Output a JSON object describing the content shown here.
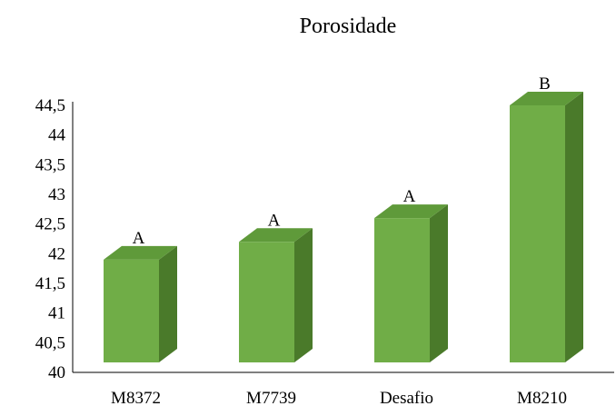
{
  "chart_data": {
    "type": "bar",
    "title": "Porosidade",
    "categories": [
      "M8372",
      "M7739",
      "Desafio",
      "M8210"
    ],
    "values": [
      41.9,
      42.2,
      42.6,
      44.5
    ],
    "data_labels": [
      "A",
      "A",
      "A",
      "B"
    ],
    "ylim": [
      40,
      44.5
    ],
    "yticks": [
      "40",
      "40,5",
      "41",
      "41,5",
      "42",
      "42,5",
      "43",
      "43,5",
      "44",
      "44,5"
    ],
    "style": "3d-column",
    "grid": false,
    "legend": "none",
    "colors": {
      "front": "#70ad47",
      "side": "#4a7a2a",
      "top": "#5f9a3a"
    }
  }
}
